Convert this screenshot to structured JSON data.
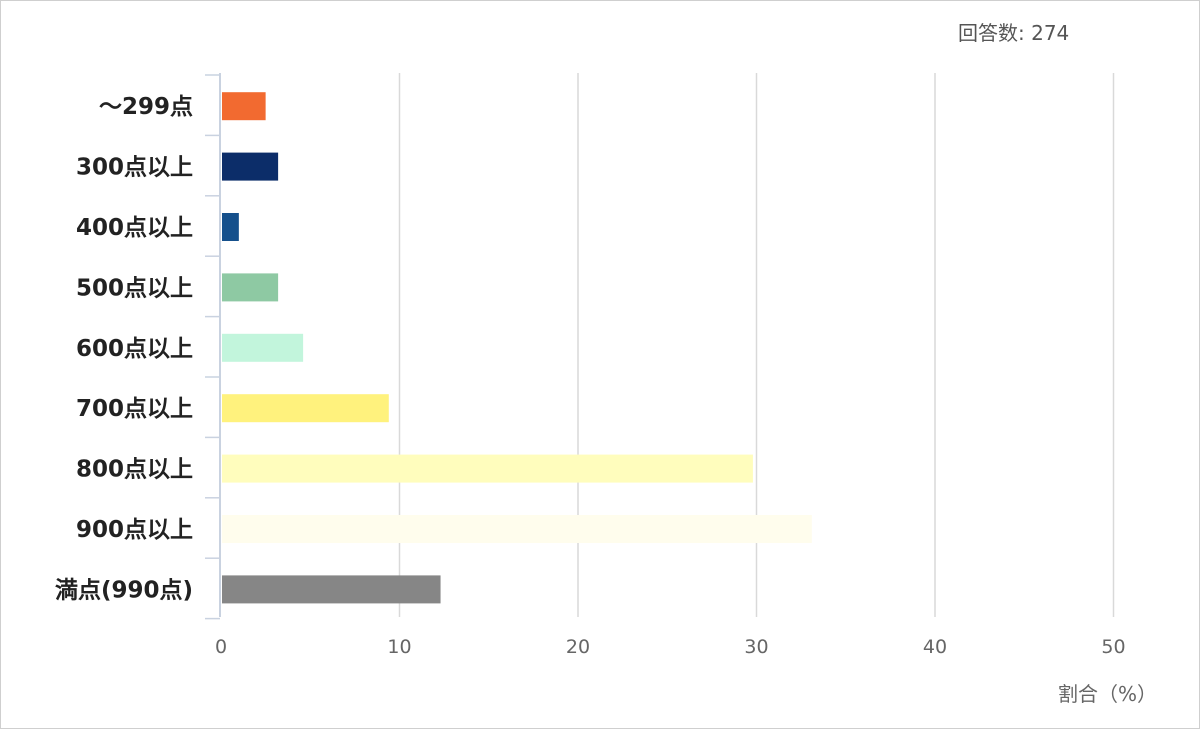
{
  "header": {
    "responses_label": "回答数: ",
    "responses_count": "274"
  },
  "chart_data": {
    "type": "bar",
    "orientation": "horizontal",
    "categories": [
      "～299点",
      "300点以上",
      "400点以上",
      "500点以上",
      "600点以上",
      "700点以上",
      "800点以上",
      "900点以上",
      "満点(990点)"
    ],
    "values": [
      2.5,
      3.2,
      1.0,
      3.2,
      4.6,
      9.4,
      29.8,
      33.1,
      12.3
    ],
    "colors": [
      "#f26a30",
      "#0c2d69",
      "#15508c",
      "#8ec9a3",
      "#c2f5dc",
      "#fff27d",
      "#fffdbd",
      "#fffded",
      "#868686"
    ],
    "xlim": [
      0,
      50
    ],
    "xticks": [
      "0",
      "10",
      "20",
      "30",
      "40",
      "50"
    ],
    "xlabel": "割合（%）",
    "ylabel": "",
    "title": "",
    "grid": "vertical",
    "legend": "none"
  }
}
